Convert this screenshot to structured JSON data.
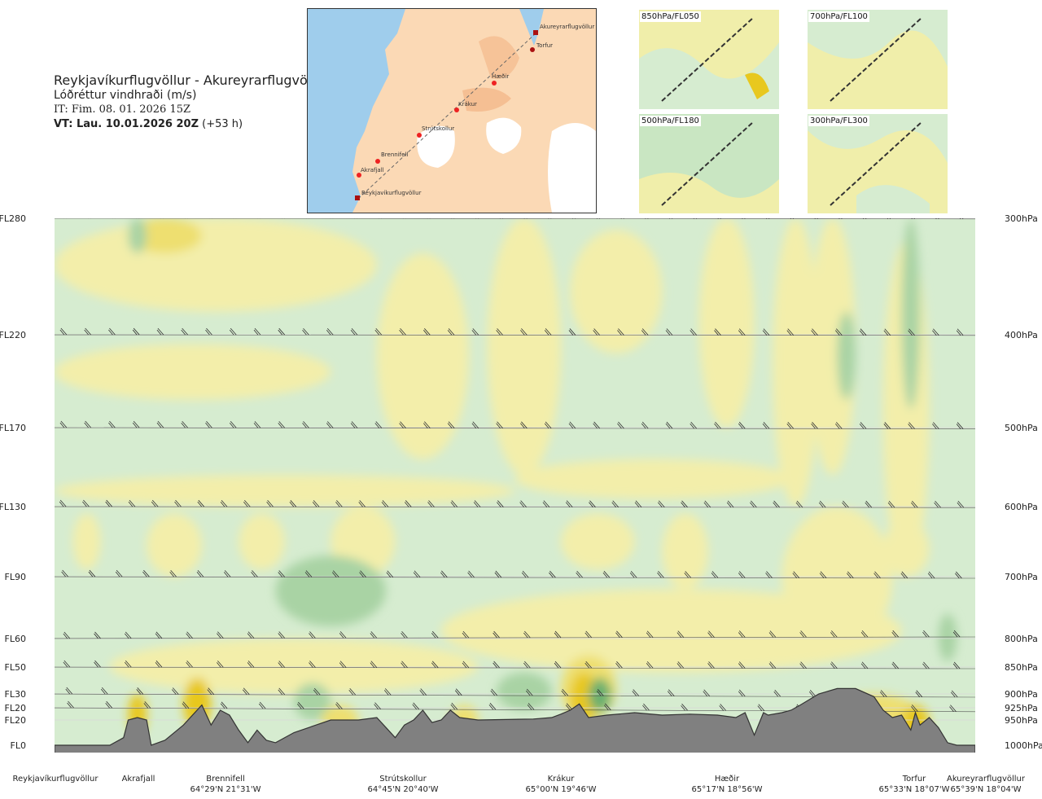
{
  "header": {
    "route": "Reykjavíkurflugvöllur - Akureyrarflugvöllur",
    "subtitle": "Lóðréttur vindhraði (m/s)",
    "issue_time": "IT: Fim. 08. 01. 2026 15Z",
    "valid_time_bold": "VT: Lau. 10.01.2026 20Z",
    "valid_offset": "(+53 h)"
  },
  "map": {
    "labels": [
      "Akureyrarflugvöllur",
      "Torfur",
      "Hæðir",
      "Krákur",
      "Strútskollur",
      "Brennifell",
      "Akrafjall",
      "Reykjavíkurflugvöllur"
    ]
  },
  "thumbnails": [
    "850hPa/FL050",
    "700hPa/FL100",
    "500hPa/FL180",
    "300hPa/FL300"
  ],
  "chart_data": {
    "type": "heatmap",
    "title": "Lóðréttur vindhraði (m/s)",
    "levels": [
      {
        "fl": "FL280",
        "pressure": "300hPa",
        "hpa": 300
      },
      {
        "fl": "FL220",
        "pressure": "400hPa",
        "hpa": 400
      },
      {
        "fl": "FL170",
        "pressure": "500hPa",
        "hpa": 500
      },
      {
        "fl": "FL130",
        "pressure": "600hPa",
        "hpa": 600
      },
      {
        "fl": "FL90",
        "pressure": "700hPa",
        "hpa": 700
      },
      {
        "fl": "FL60",
        "pressure": "800hPa",
        "hpa": 800
      },
      {
        "fl": "FL50",
        "pressure": "850hPa",
        "hpa": 850
      },
      {
        "fl": "FL30",
        "pressure": "900hPa",
        "hpa": 900
      },
      {
        "fl": "FL20",
        "pressure": "925hPa",
        "hpa": 925
      },
      {
        "fl": "FL20",
        "pressure": "950hPa",
        "hpa": 950
      },
      {
        "fl": "FL0",
        "pressure": "1000hPa",
        "hpa": 1000
      }
    ],
    "locations": [
      {
        "name": "Reykjavíkurflugvöllur",
        "coord": "",
        "frac": 0.0
      },
      {
        "name": "Akrafjall",
        "coord": "",
        "frac": 0.09
      },
      {
        "name": "Brennifell",
        "coord": "64°29'N 21°31'W",
        "frac": 0.19
      },
      {
        "name": "Strútskollur",
        "coord": "64°45'N 20°40'W",
        "frac": 0.38
      },
      {
        "name": "Krákur",
        "coord": "65°00'N 19°46'W",
        "frac": 0.57
      },
      {
        "name": "Hæðir",
        "coord": "65°17'N 18°56'W",
        "frac": 0.755
      },
      {
        "name": "Torfur",
        "coord": "65°33'N 18°07'W",
        "frac": 0.93
      },
      {
        "name": "Akureyrarflugvöllur",
        "coord": "65°39'N 18°04'W",
        "frac": 1.0
      }
    ],
    "colors": {
      "updraft_weak": "#f3eeaa",
      "updraft_moderate": "#eedf70",
      "updraft_strong": "#e8c81f",
      "updraft_max": "#d99a10",
      "downdraft_weak": "#d6ecd0",
      "downdraft_moderate": "#a9d3a4",
      "downdraft_strong": "#6ab070",
      "near_zero": "#f6fbe8",
      "terrain": "#808080"
    }
  }
}
